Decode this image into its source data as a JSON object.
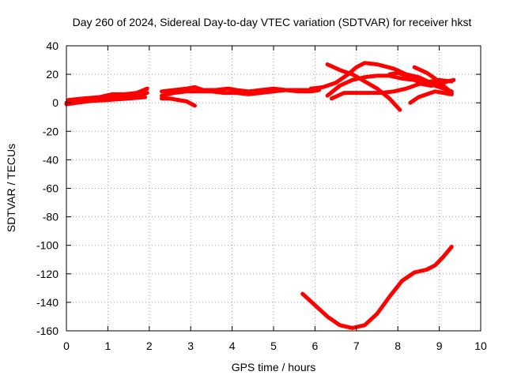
{
  "chart_data": {
    "type": "line",
    "title": "Day 260 of 2024, Sidereal Day-to-day VTEC variation (SDTVAR) for receiver hkst",
    "xlabel": "GPS time / hours",
    "ylabel": "SDTVAR / TECUs",
    "xlim": [
      0,
      10
    ],
    "ylim": [
      -160,
      40
    ],
    "xticks": [
      "0",
      "1",
      "2",
      "3",
      "4",
      "5",
      "6",
      "7",
      "8",
      "9",
      "10"
    ],
    "yticks": [
      "40",
      "20",
      "0",
      "-20",
      "-40",
      "-60",
      "-80",
      "-100",
      "-120",
      "-140",
      "-160"
    ],
    "grid": true,
    "legend": "none",
    "series_color": "#ff0000",
    "series": [
      {
        "points": [
          [
            0.0,
            0
          ],
          [
            0.3,
            1
          ],
          [
            0.6,
            2
          ],
          [
            0.9,
            4
          ],
          [
            1.2,
            5
          ],
          [
            1.5,
            5
          ],
          [
            1.75,
            6
          ],
          [
            1.95,
            7
          ]
        ]
      },
      {
        "points": [
          [
            0.05,
            2
          ],
          [
            0.4,
            3
          ],
          [
            0.8,
            4
          ],
          [
            1.1,
            6
          ],
          [
            1.4,
            6
          ],
          [
            1.7,
            7
          ],
          [
            1.95,
            10
          ]
        ]
      },
      {
        "points": [
          [
            0.0,
            -1
          ],
          [
            0.5,
            1
          ],
          [
            1.0,
            2
          ],
          [
            1.5,
            3
          ],
          [
            1.9,
            4
          ]
        ]
      },
      {
        "points": [
          [
            2.3,
            8
          ],
          [
            2.6,
            9
          ],
          [
            2.9,
            10
          ],
          [
            3.1,
            11
          ],
          [
            3.3,
            9
          ],
          [
            3.6,
            9
          ],
          [
            3.9,
            10
          ],
          [
            4.1,
            9
          ],
          [
            4.4,
            8
          ],
          [
            4.7,
            9
          ],
          [
            5.0,
            10
          ],
          [
            5.3,
            9
          ],
          [
            5.6,
            9
          ],
          [
            5.9,
            9
          ],
          [
            6.1,
            10
          ]
        ]
      },
      {
        "points": [
          [
            2.3,
            5
          ],
          [
            2.6,
            7
          ],
          [
            2.9,
            8
          ],
          [
            3.2,
            8
          ],
          [
            3.5,
            8
          ],
          [
            3.8,
            7
          ],
          [
            4.1,
            7
          ],
          [
            4.4,
            6
          ],
          [
            4.7,
            7
          ],
          [
            5.0,
            8
          ],
          [
            5.3,
            9
          ],
          [
            5.6,
            8
          ],
          [
            5.9,
            8
          ],
          [
            6.1,
            9
          ]
        ]
      },
      {
        "points": [
          [
            2.3,
            3
          ],
          [
            2.5,
            3
          ],
          [
            2.7,
            2
          ],
          [
            2.9,
            1
          ],
          [
            3.1,
            -2
          ]
        ]
      },
      {
        "points": [
          [
            5.9,
            10
          ],
          [
            6.2,
            11
          ],
          [
            6.5,
            14
          ],
          [
            6.8,
            20
          ],
          [
            7.0,
            25
          ],
          [
            7.2,
            28
          ],
          [
            7.5,
            27
          ],
          [
            7.9,
            24
          ],
          [
            8.2,
            20
          ],
          [
            8.5,
            18
          ],
          [
            8.8,
            14
          ],
          [
            9.1,
            11
          ],
          [
            9.3,
            6
          ]
        ]
      },
      {
        "points": [
          [
            6.3,
            27
          ],
          [
            6.6,
            23
          ],
          [
            6.9,
            20
          ],
          [
            7.2,
            15
          ],
          [
            7.5,
            10
          ],
          [
            7.8,
            3
          ],
          [
            8.05,
            -5
          ]
        ]
      },
      {
        "points": [
          [
            6.3,
            5
          ],
          [
            6.6,
            12
          ],
          [
            6.9,
            16
          ],
          [
            7.2,
            18
          ],
          [
            7.5,
            19
          ],
          [
            7.8,
            19
          ],
          [
            8.1,
            17
          ],
          [
            8.4,
            16
          ],
          [
            8.7,
            14
          ],
          [
            9.0,
            11
          ],
          [
            9.3,
            8
          ]
        ]
      },
      {
        "points": [
          [
            6.4,
            3
          ],
          [
            6.7,
            7
          ],
          [
            7.0,
            7
          ],
          [
            7.3,
            7
          ],
          [
            7.6,
            7
          ],
          [
            7.9,
            8
          ],
          [
            8.2,
            10
          ],
          [
            8.5,
            13
          ],
          [
            8.8,
            15
          ],
          [
            9.0,
            16
          ],
          [
            9.3,
            15
          ]
        ]
      },
      {
        "points": [
          [
            7.8,
            20
          ],
          [
            8.0,
            21
          ],
          [
            8.2,
            19
          ],
          [
            8.4,
            16
          ],
          [
            8.6,
            13
          ],
          [
            8.8,
            12
          ],
          [
            9.0,
            13
          ],
          [
            9.2,
            15
          ],
          [
            9.35,
            16
          ]
        ]
      },
      {
        "points": [
          [
            8.3,
            0
          ],
          [
            8.5,
            4
          ],
          [
            8.7,
            6
          ],
          [
            8.9,
            8
          ],
          [
            9.1,
            7
          ],
          [
            9.3,
            6
          ]
        ]
      },
      {
        "points": [
          [
            8.4,
            25
          ],
          [
            8.7,
            21
          ],
          [
            8.9,
            17
          ],
          [
            9.1,
            12
          ],
          [
            9.3,
            7
          ]
        ]
      },
      {
        "points": [
          [
            5.7,
            -134
          ],
          [
            6.0,
            -142
          ],
          [
            6.3,
            -150
          ],
          [
            6.6,
            -156
          ],
          [
            6.9,
            -158
          ],
          [
            7.2,
            -156
          ],
          [
            7.5,
            -148
          ],
          [
            7.8,
            -136
          ],
          [
            8.1,
            -125
          ],
          [
            8.4,
            -119
          ],
          [
            8.7,
            -117
          ],
          [
            8.9,
            -114
          ],
          [
            9.1,
            -108
          ],
          [
            9.3,
            -101
          ]
        ]
      }
    ]
  }
}
